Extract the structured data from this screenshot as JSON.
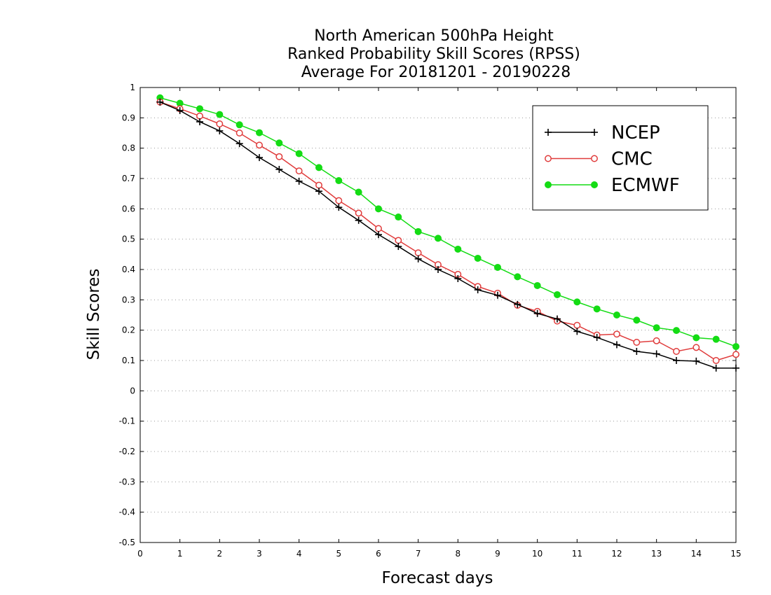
{
  "chart_data": {
    "type": "line",
    "title": [
      "North American 500hPa Height",
      "Ranked Probability Skill Scores (RPSS)",
      "Average For 20181201 - 20190228"
    ],
    "xlabel": "Forecast days",
    "ylabel": "Skill Scores",
    "xlim": [
      0,
      15
    ],
    "ylim": [
      -0.5,
      1
    ],
    "x_ticks": [
      "0",
      "1",
      "2",
      "3",
      "4",
      "5",
      "6",
      "7",
      "8",
      "9",
      "10",
      "11",
      "12",
      "13",
      "14",
      "15"
    ],
    "y_ticks": [
      "-0.5",
      "-0.4",
      "-0.3",
      "-0.2",
      "-0.1",
      "0",
      "0.1",
      "0.2",
      "0.3",
      "0.4",
      "0.5",
      "0.6",
      "0.7",
      "0.8",
      "0.9",
      "1"
    ],
    "grid": "horizontal dotted",
    "legend_position": "top-right",
    "x": [
      0.5,
      1,
      1.5,
      2,
      2.5,
      3,
      3.5,
      4,
      4.5,
      5,
      5.5,
      6,
      6.5,
      7,
      7.5,
      8,
      8.5,
      9,
      9.5,
      10,
      10.5,
      11,
      11.5,
      12,
      12.5,
      13,
      13.5,
      14,
      14.5,
      15
    ],
    "series": [
      {
        "name": "NCEP",
        "color": "#000000",
        "marker": "plus",
        "values": [
          0.952,
          0.924,
          0.887,
          0.857,
          0.815,
          0.769,
          0.73,
          0.691,
          0.658,
          0.605,
          0.562,
          0.515,
          0.476,
          0.435,
          0.4,
          0.37,
          0.333,
          0.315,
          0.285,
          0.255,
          0.237,
          0.196,
          0.176,
          0.152,
          0.13,
          0.122,
          0.1,
          0.098,
          0.075,
          0.075
        ]
      },
      {
        "name": "CMC",
        "color": "#e03c3c",
        "marker": "open-circle",
        "values": [
          0.952,
          0.93,
          0.906,
          0.88,
          0.85,
          0.81,
          0.772,
          0.725,
          0.678,
          0.627,
          0.586,
          0.535,
          0.496,
          0.455,
          0.416,
          0.384,
          0.344,
          0.322,
          0.282,
          0.262,
          0.23,
          0.216,
          0.184,
          0.187,
          0.16,
          0.165,
          0.13,
          0.143,
          0.1,
          0.12
        ]
      },
      {
        "name": "ECMWF",
        "color": "#14dc14",
        "marker": "filled-circle",
        "values": [
          0.966,
          0.948,
          0.93,
          0.911,
          0.877,
          0.851,
          0.817,
          0.782,
          0.736,
          0.693,
          0.655,
          0.6,
          0.573,
          0.525,
          0.503,
          0.467,
          0.437,
          0.407,
          0.376,
          0.347,
          0.317,
          0.293,
          0.27,
          0.25,
          0.233,
          0.208,
          0.199,
          0.175,
          0.17,
          0.146
        ]
      }
    ]
  }
}
